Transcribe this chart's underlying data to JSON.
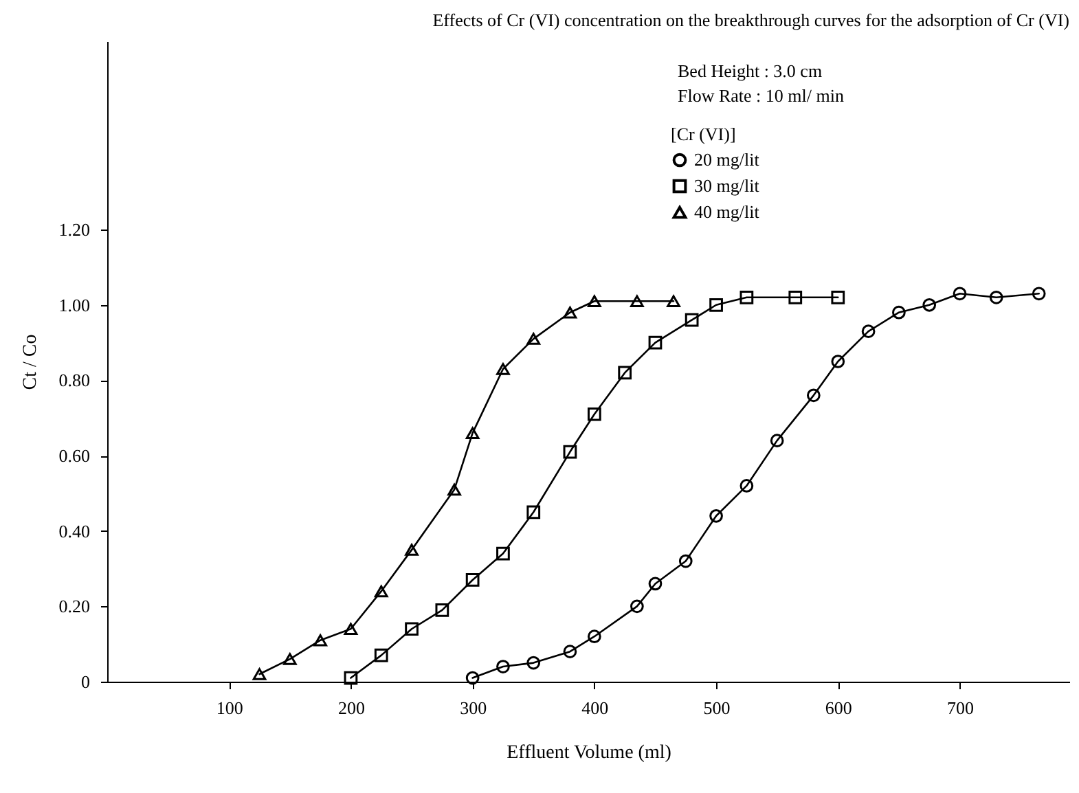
{
  "chart_data": {
    "type": "line",
    "title": "Effects of Cr (VI) concentration on the breakthrough curves for the adsorption of Cr (VI)",
    "xlabel": "Effluent Volume (ml)",
    "ylabel": "Ct / Co",
    "legend_title": "[Cr (VI)]",
    "legend": "top right",
    "line_style": "solid",
    "grid": false,
    "annotations": [
      "Bed Height : 3.0 cm",
      "Flow Rate : 10 ml/ min"
    ],
    "xlim": [
      0,
      790
    ],
    "xticks": [
      100,
      200,
      300,
      400,
      500,
      600,
      700
    ],
    "ylim": [
      0,
      1.7
    ],
    "yticks": [
      {
        "value": 0,
        "label": "0"
      },
      {
        "value": 0.2,
        "label": "0.20"
      },
      {
        "value": 0.4,
        "label": "0.40"
      },
      {
        "value": 0.6,
        "label": "0.60"
      },
      {
        "value": 0.8,
        "label": "0.80"
      },
      {
        "value": 1,
        "label": "1.00"
      },
      {
        "value": 1.2,
        "label": "1.20"
      }
    ],
    "series": [
      {
        "name": "20 mg/lit",
        "color": "#000000",
        "marker": "circle",
        "x": [
          300,
          325,
          350,
          380,
          400,
          435,
          450,
          475,
          500,
          525,
          550,
          580,
          600,
          625,
          650,
          675,
          700,
          730,
          765
        ],
        "values": [
          0.01,
          0.04,
          0.05,
          0.08,
          0.12,
          0.2,
          0.26,
          0.32,
          0.44,
          0.52,
          0.64,
          0.76,
          0.85,
          0.93,
          0.98,
          1.0,
          1.03,
          1.02,
          1.03
        ]
      },
      {
        "name": "30 mg/lit",
        "color": "#000000",
        "marker": "square",
        "x": [
          200,
          225,
          250,
          275,
          300,
          325,
          350,
          380,
          400,
          425,
          450,
          480,
          500,
          525,
          565,
          600
        ],
        "values": [
          0.01,
          0.07,
          0.14,
          0.19,
          0.27,
          0.34,
          0.45,
          0.61,
          0.71,
          0.82,
          0.9,
          0.96,
          1.0,
          1.02,
          1.02,
          1.02
        ]
      },
      {
        "name": "40 mg/lit",
        "color": "#000000",
        "marker": "triangle",
        "x": [
          125,
          150,
          175,
          200,
          225,
          250,
          285,
          300,
          325,
          350,
          380,
          400,
          435,
          465
        ],
        "values": [
          0.02,
          0.06,
          0.11,
          0.14,
          0.24,
          0.35,
          0.51,
          0.66,
          0.83,
          0.91,
          0.98,
          1.01,
          1.01,
          1.01
        ]
      }
    ]
  }
}
